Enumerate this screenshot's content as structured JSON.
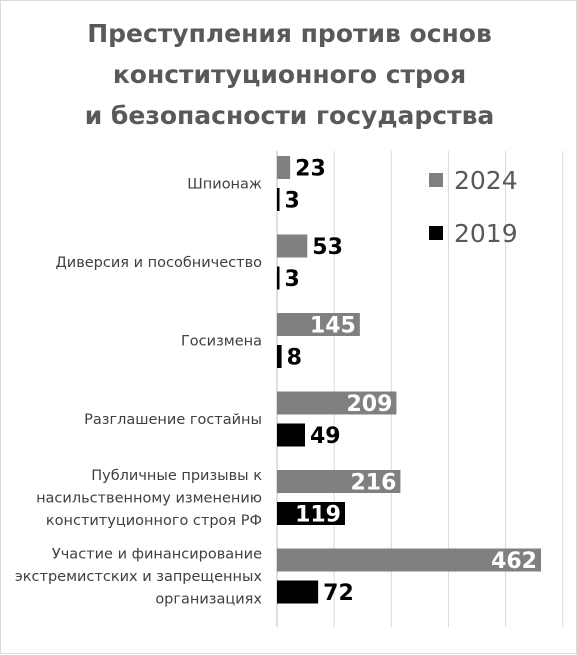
{
  "chart_data": {
    "type": "bar",
    "orientation": "horizontal",
    "title": [
      "Преступления против основ",
      "конституционного строя",
      "и безопасности государства"
    ],
    "categories": [
      [
        "Шпионаж"
      ],
      [
        "Диверсия и пособничество"
      ],
      [
        "Госизмена"
      ],
      [
        "Разглашение гостайны"
      ],
      [
        "Публичные призывы к",
        "насильственному изменению",
        "конституционного строя РФ"
      ],
      [
        "Участие и финансирование",
        "экстремистских и запрещенных",
        "организациях"
      ]
    ],
    "series": [
      {
        "name": "2024",
        "color": "#808080",
        "values": [
          23,
          53,
          145,
          209,
          216,
          462
        ]
      },
      {
        "name": "2019",
        "color": "#000000",
        "values": [
          3,
          3,
          8,
          49,
          119,
          72
        ]
      }
    ],
    "xlim": [
      0,
      520
    ],
    "grid": true,
    "legend_position": "top-right"
  }
}
